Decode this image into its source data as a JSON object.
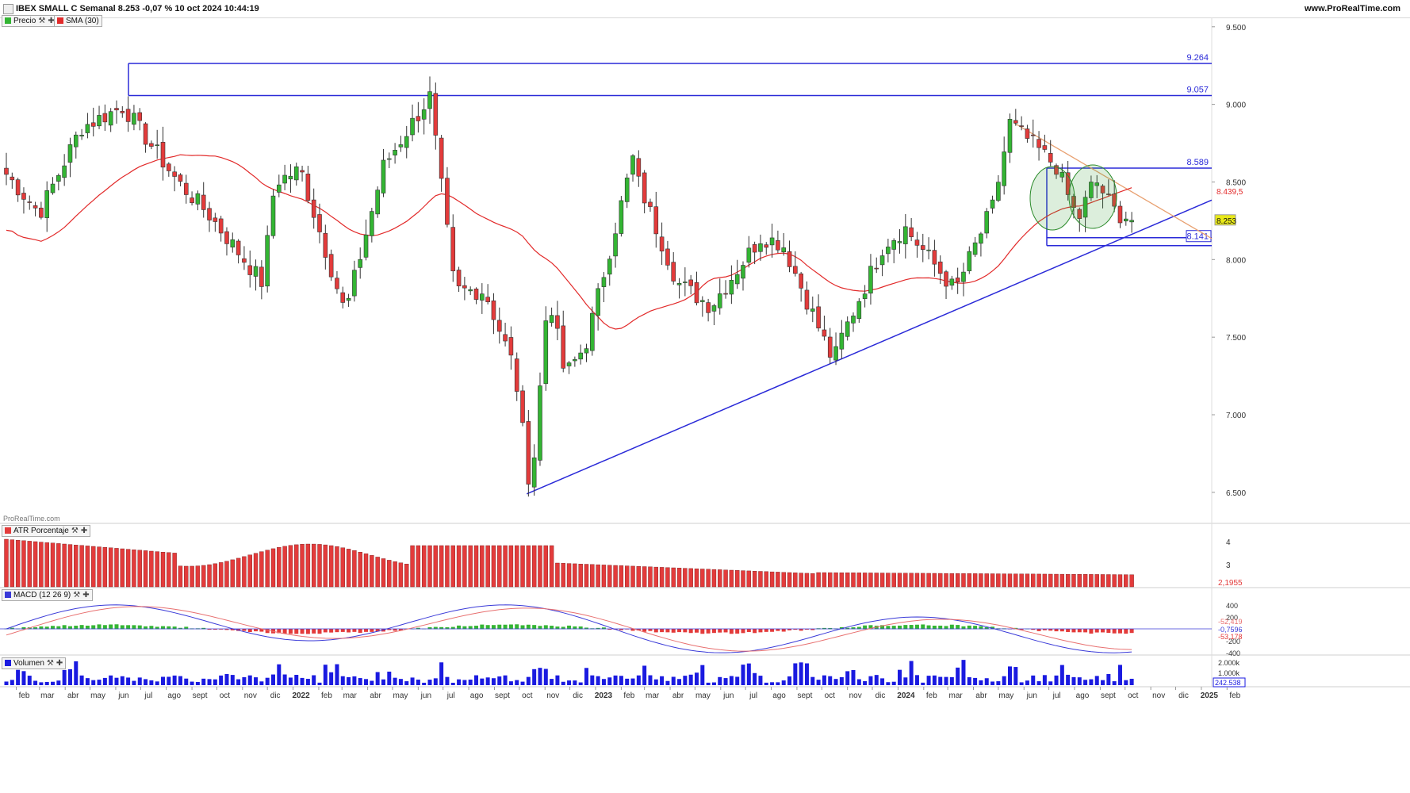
{
  "header": {
    "title": "IBEX SMALL C Semanal 8.253 -0,07 % 10 oct 2024 10:44:19",
    "url": "www.ProRealTime.com"
  },
  "legend": {
    "price": "Precio",
    "sma": "SMA (30)",
    "watermark": "ProRealTime.com",
    "atr": "ATR Porcentaje",
    "macd": "MACD (12 26 9)",
    "vol": "Volumen"
  },
  "colors": {
    "up": "#33b533",
    "down": "#e33b3b",
    "sma": "#e22a2a",
    "trend": "#2a2ad8",
    "resistance": "#e8a070",
    "macd_line": "#3a3ad8",
    "signal_line": "#e87070",
    "volume": "#1a1ae0",
    "atr": "#e33b3b",
    "ellipse": "#2a8a2a"
  },
  "chart_data": {
    "type": "candlestick",
    "instrument": "IBEX SMALL C",
    "timeframe": "Semanal",
    "last_price": 8253,
    "change_pct": "-0,07 %",
    "date": "10 oct 2024 10:44:19",
    "price_axis": {
      "ticks": [
        "9.500",
        "9.000",
        "8.500",
        "8.000",
        "7.500",
        "7.000",
        "6.500"
      ],
      "range": [
        6300,
        9550
      ]
    },
    "horizontal_levels": [
      {
        "label": "9.264",
        "value": 9264
      },
      {
        "label": "9.057",
        "value": 9057
      },
      {
        "label": "8.589",
        "value": 8589
      },
      {
        "label": "8.141",
        "value": 8141
      }
    ],
    "current_labels": {
      "sma_value": "8.439,5",
      "price_value": "8.253"
    },
    "support_trendline": {
      "from": {
        "date": "2022-10",
        "value": 6490
      },
      "to": {
        "date": "2024-10",
        "value": 8160
      }
    },
    "resistance_trendline": {
      "from": {
        "date": "2024-05",
        "value": 8880
      },
      "to": {
        "date": "2024-10",
        "value": 8440
      }
    },
    "key_points": [
      {
        "date": "2021-06",
        "value": 9000
      },
      {
        "date": "2022-06",
        "value": 9050
      },
      {
        "date": "2022-10",
        "value": 6490
      },
      {
        "date": "2023-02",
        "value": 8650
      },
      {
        "date": "2023-10",
        "value": 7340
      },
      {
        "date": "2024-05",
        "value": 8880
      },
      {
        "date": "2024-10",
        "value": 8253
      }
    ],
    "x_axis_labels": [
      "feb",
      "mar",
      "abr",
      "may",
      "jun",
      "jul",
      "ago",
      "sept",
      "oct",
      "nov",
      "dic",
      "2022",
      "feb",
      "mar",
      "abr",
      "may",
      "jun",
      "jul",
      "ago",
      "sept",
      "oct",
      "nov",
      "dic",
      "2023",
      "feb",
      "mar",
      "abr",
      "may",
      "jun",
      "jul",
      "ago",
      "sept",
      "oct",
      "nov",
      "dic",
      "2024",
      "feb",
      "mar",
      "abr",
      "may",
      "jun",
      "jul",
      "ago",
      "sept",
      "oct",
      "nov",
      "dic",
      "2025",
      "feb"
    ],
    "sma_period": 30,
    "atr": {
      "ticks": [
        "4",
        "3"
      ],
      "last": "2,1955"
    },
    "macd": {
      "params": "12 26 9",
      "ticks": [
        "400",
        "200",
        "-200",
        "-400"
      ],
      "labels": [
        "-52,419",
        "-0,7596",
        "-53,178"
      ]
    },
    "volume": {
      "ticks": [
        "2.000k",
        "1.000k"
      ],
      "last": "242.538"
    }
  }
}
